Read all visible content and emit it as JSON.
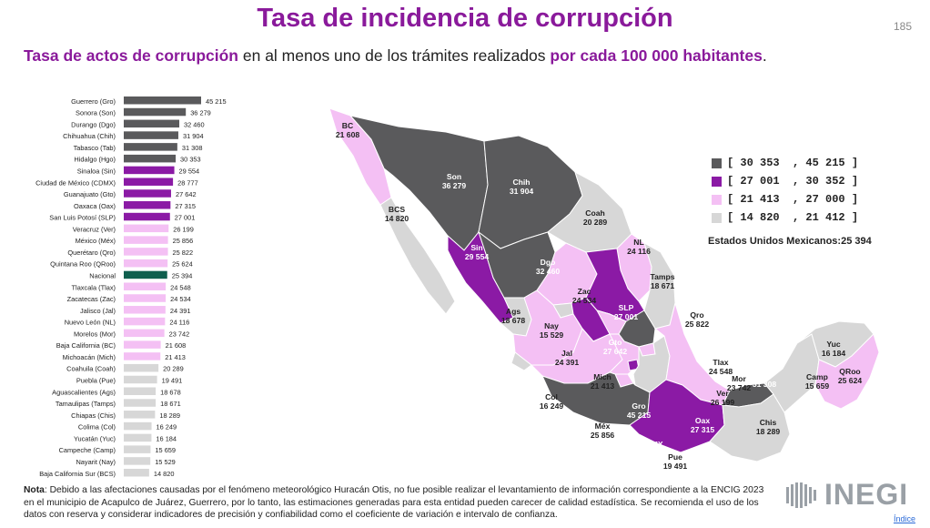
{
  "header": {
    "title": "Tasa de incidencia de corrupción",
    "page_number": "185",
    "subtitle": {
      "part1": "Tasa de actos de corrupción",
      "part2": " en al menos uno de los trámites realizados ",
      "part3": "por cada 100 000 habitantes",
      "part4": "."
    }
  },
  "colors": {
    "dark_gray": "#5a5a5c",
    "purple": "#8b1aa5",
    "light_pink": "#f4c0f4",
    "light_gray": "#d7d7d7",
    "national_teal": "#0f5f4e",
    "title_purple": "#8a1a9b"
  },
  "chart_data": [
    {
      "type": "bar",
      "orientation": "horizontal",
      "categories": [
        "Guerrero (Gro)",
        "Sonora (Son)",
        "Durango (Dgo)",
        "Chihuahua (Chih)",
        "Tabasco (Tab)",
        "Hidalgo (Hgo)",
        "Sinaloa (Sin)",
        "Ciudad de México (CDMX)",
        "Guanajuato (Gto)",
        "Oaxaca (Oax)",
        "San Luis Potosí (SLP)",
        "Veracruz (Ver)",
        "México (Méx)",
        "Querétaro (Qro)",
        "Quintana Roo (QRoo)",
        "Nacional",
        "Tlaxcala (Tlax)",
        "Zacatecas (Zac)",
        "Jalisco (Jal)",
        "Nuevo León (NL)",
        "Morelos (Mor)",
        "Baja California (BC)",
        "Michoacán (Mich)",
        "Coahuila (Coah)",
        "Puebla (Pue)",
        "Aguascalientes (Ags)",
        "Tamaulipas (Tamps)",
        "Chiapas (Chis)",
        "Colima (Col)",
        "Yucatán (Yuc)",
        "Campeche (Camp)",
        "Nayarit (Nay)",
        "Baja California Sur (BCS)"
      ],
      "values": [
        45215,
        36279,
        32460,
        31904,
        31308,
        30353,
        29554,
        28777,
        27642,
        27315,
        27001,
        26199,
        25856,
        25822,
        25624,
        25394,
        24548,
        24534,
        24391,
        24116,
        23742,
        21608,
        21413,
        20289,
        19491,
        18678,
        18671,
        18289,
        16249,
        16184,
        15659,
        15529,
        14820
      ],
      "value_labels": [
        "45 215",
        "36 279",
        "32 460",
        "31 904",
        "31 308",
        "30 353",
        "29 554",
        "28 777",
        "27 642",
        "27 315",
        "27 001",
        "26 199",
        "25 856",
        "25 822",
        "25 624",
        "25 394",
        "24 548",
        "24 534",
        "24 391",
        "24 116",
        "23 742",
        "21 608",
        "21 413",
        "20 289",
        "19 491",
        "18 678",
        "18 671",
        "18 289",
        "16 249",
        "16 184",
        "15 659",
        "15 529",
        "14 820"
      ],
      "classes": [
        "dark",
        "dark",
        "dark",
        "dark",
        "dark",
        "dark",
        "purple",
        "purple",
        "purple",
        "purple",
        "purple",
        "pink",
        "pink",
        "pink",
        "pink",
        "national",
        "pink",
        "pink",
        "pink",
        "pink",
        "pink",
        "pink",
        "pink",
        "gray",
        "gray",
        "gray",
        "gray",
        "gray",
        "gray",
        "gray",
        "gray",
        "gray",
        "gray"
      ],
      "xlim": [
        0,
        45215
      ]
    },
    {
      "type": "choropleth",
      "legend": [
        {
          "range": "[ 30 353  , 45 215 ]",
          "class": "dark"
        },
        {
          "range": "[ 27 001  , 30 352 ]",
          "class": "purple"
        },
        {
          "range": "[ 21 413  , 27 000 ]",
          "class": "pink"
        },
        {
          "range": "[ 14 820  , 21 412 ]",
          "class": "gray"
        }
      ],
      "national_label": "Estados Unidos Mexicanos:25 394",
      "states": [
        {
          "abbr": "BC",
          "value": "21 608",
          "class": "pink"
        },
        {
          "abbr": "BCS",
          "value": "14 820",
          "class": "gray"
        },
        {
          "abbr": "Son",
          "value": "36 279",
          "class": "dark"
        },
        {
          "abbr": "Chih",
          "value": "31 904",
          "class": "dark"
        },
        {
          "abbr": "Coah",
          "value": "20 289",
          "class": "gray"
        },
        {
          "abbr": "Sin",
          "value": "29 554",
          "class": "purple"
        },
        {
          "abbr": "Dgo",
          "value": "32 460",
          "class": "dark"
        },
        {
          "abbr": "NL",
          "value": "24 116",
          "class": "pink"
        },
        {
          "abbr": "Tamps",
          "value": "18 671",
          "class": "gray"
        },
        {
          "abbr": "Zac",
          "value": "24 534",
          "class": "pink"
        },
        {
          "abbr": "SLP",
          "value": "27 001",
          "class": "purple"
        },
        {
          "abbr": "Ags",
          "value": "18 678",
          "class": "gray"
        },
        {
          "abbr": "Nay",
          "value": "15 529",
          "class": "gray"
        },
        {
          "abbr": "Qro",
          "value": "25 822",
          "class": "pink"
        },
        {
          "abbr": "Hgo",
          "value": "30 353",
          "class": "dark"
        },
        {
          "abbr": "Gto",
          "value": "27 642",
          "class": "purple"
        },
        {
          "abbr": "Jal",
          "value": "24 391",
          "class": "pink"
        },
        {
          "abbr": "Tlax",
          "value": "24 548",
          "class": "pink"
        },
        {
          "abbr": "Mor",
          "value": "23 742",
          "class": "pink"
        },
        {
          "abbr": "Tab",
          "value": "31 308",
          "class": "dark"
        },
        {
          "abbr": "Yuc",
          "value": "16 184",
          "class": "gray"
        },
        {
          "abbr": "Camp",
          "value": "15 659",
          "class": "gray"
        },
        {
          "abbr": "QRoo",
          "value": "25 624",
          "class": "pink"
        },
        {
          "abbr": "Mich",
          "value": "21 413",
          "class": "pink"
        },
        {
          "abbr": "Col",
          "value": "16 249",
          "class": "gray"
        },
        {
          "abbr": "Ver",
          "value": "26 199",
          "class": "pink"
        },
        {
          "abbr": "Gro",
          "value": "45 215",
          "class": "dark"
        },
        {
          "abbr": "Oax",
          "value": "27 315",
          "class": "purple"
        },
        {
          "abbr": "Chis",
          "value": "18 289",
          "class": "gray"
        },
        {
          "abbr": "Méx",
          "value": "25 856",
          "class": "pink"
        },
        {
          "abbr": "CDMX",
          "value": "28 777",
          "class": "purple"
        },
        {
          "abbr": "Pue",
          "value": "19 491",
          "class": "gray"
        }
      ]
    }
  ],
  "note": {
    "label": "Nota",
    "text": ": Debido a las afectaciones causadas por el fenómeno meteorológico Huracán Otis, no fue posible realizar el levantamiento de información correspondiente a la ENCIG 2023 en el municipio de Acapulco de Juárez, Guerrero, por lo tanto, las estimaciones generadas para esta entidad pueden carecer de calidad estadística. Se recomienda el uso de los datos con reserva y considerar indicadores de precisión y confiabilidad como el coeficiente de variación e intervalo de confianza."
  },
  "logo": {
    "text": "INEGI"
  },
  "footer": {
    "index_link": "Índice"
  }
}
